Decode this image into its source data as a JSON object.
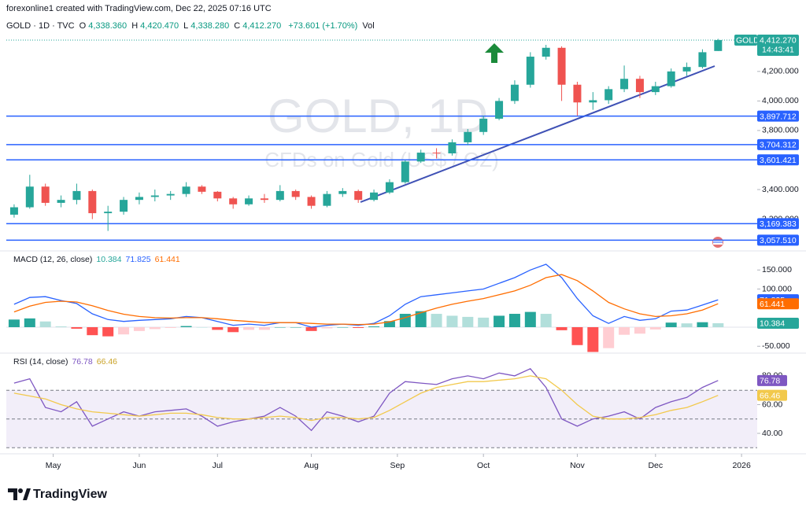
{
  "header": {
    "attribution": "forexonline1 created with TradingView.com, Dec 22, 2025 07:16 UTC",
    "symbol": "GOLD · 1D · TVC",
    "legend": [
      {
        "label": "O",
        "value": "4,338.360"
      },
      {
        "label": "H",
        "value": "4,420.470"
      },
      {
        "label": "L",
        "value": "4,338.280"
      },
      {
        "label": "C",
        "value": "4,412.270"
      }
    ],
    "change": "+73.601 (+1.70%)",
    "volume": "Vol"
  },
  "watermark": {
    "title": "GOLD, 1D",
    "subtitle": "CFDs on Gold (US$ / OZ)"
  },
  "chart_data": [
    {
      "type": "candlestick",
      "up_color": "#26a69a",
      "down_color": "#ef5350",
      "open": [
        3230,
        3280,
        3420,
        3310,
        3330,
        3390,
        3240,
        3250,
        3330,
        3350,
        3360,
        3370,
        3420,
        3385,
        3340,
        3300,
        3340,
        3330,
        3390,
        3350,
        3290,
        3370,
        3390,
        3330,
        3380,
        3450,
        3590,
        3650,
        3645,
        3720,
        3790,
        3880,
        4000,
        4110,
        4300,
        4360,
        4110,
        3990,
        4005,
        4080,
        4150,
        4060,
        4100,
        4200,
        4230,
        4338.36
      ],
      "high": [
        3300,
        3500,
        3440,
        3360,
        3440,
        3400,
        3290,
        3350,
        3380,
        3400,
        3390,
        3450,
        3430,
        3390,
        3350,
        3360,
        3370,
        3430,
        3400,
        3360,
        3390,
        3410,
        3400,
        3400,
        3470,
        3600,
        3670,
        3680,
        3740,
        3810,
        3900,
        4020,
        4140,
        4330,
        4380,
        4370,
        4130,
        4060,
        4100,
        4240,
        4170,
        4130,
        4220,
        4260,
        4350,
        4420.47
      ],
      "low": [
        3210,
        3270,
        3290,
        3280,
        3300,
        3200,
        3120,
        3230,
        3300,
        3320,
        3330,
        3350,
        3370,
        3320,
        3270,
        3290,
        3310,
        3320,
        3330,
        3270,
        3280,
        3350,
        3310,
        3320,
        3370,
        3440,
        3580,
        3610,
        3630,
        3700,
        3770,
        3870,
        3980,
        4090,
        4280,
        4000,
        3900,
        3940,
        3980,
        4060,
        4020,
        4040,
        4090,
        4170,
        4220,
        4338.28
      ],
      "close": [
        3280,
        3420,
        3310,
        3330,
        3390,
        3240,
        3250,
        3330,
        3350,
        3360,
        3370,
        3420,
        3385,
        3340,
        3300,
        3340,
        3330,
        3390,
        3350,
        3290,
        3370,
        3390,
        3330,
        3380,
        3450,
        3590,
        3650,
        3645,
        3720,
        3790,
        3880,
        4000,
        4110,
        4300,
        4360,
        4110,
        3990,
        4005,
        4080,
        4150,
        4060,
        4100,
        4200,
        4230,
        4330,
        4412.27
      ],
      "xlim": [
        -0.5,
        47.5
      ],
      "xticks": [
        {
          "value": 2.5,
          "label": "May"
        },
        {
          "value": 8,
          "label": "Jun"
        },
        {
          "value": 13,
          "label": "Jul"
        },
        {
          "value": 19,
          "label": "Aug"
        },
        {
          "value": 24.5,
          "label": "Sep"
        },
        {
          "value": 30,
          "label": "Oct"
        },
        {
          "value": 36,
          "label": "Nov"
        },
        {
          "value": 41,
          "label": "Dec"
        },
        {
          "value": 46.5,
          "label": "2026"
        }
      ],
      "ylim": [
        2990,
        4460
      ],
      "yticks": [
        {
          "value": 4200,
          "label": "4,200.000"
        },
        {
          "value": 4000,
          "label": "4,000.000"
        },
        {
          "value": 3800,
          "label": "3,800.000"
        },
        {
          "value": 3400,
          "label": "3,400.000"
        },
        {
          "value": 3200,
          "label": "3,200.000"
        }
      ],
      "level_color": "#2962ff",
      "levels": [
        {
          "value": 3897.712,
          "label": "3,897.712"
        },
        {
          "value": 3704.312,
          "label": "3,704.312"
        },
        {
          "value": 3601.421,
          "label": "3,601.421"
        },
        {
          "value": 3169.383,
          "label": "3,169.383"
        },
        {
          "value": 3057.51,
          "label": "3,057.510"
        }
      ],
      "last_price": {
        "value": 4412.27,
        "label": "4,412.270",
        "symbol": "GOLD",
        "countdown": "14:43:41",
        "color": "#26a69a"
      }
    },
    {
      "type": "macd",
      "title": "MACD (12, 26, close)",
      "ylim": [
        -66,
        198
      ],
      "yticks": [
        {
          "value": 150,
          "label": "150.000"
        },
        {
          "value": 100,
          "label": "100.000"
        },
        {
          "value": -50,
          "label": "-50.000"
        }
      ],
      "histogram": {
        "colors": [
          "#26a69a",
          "#b2dfdb",
          "#ffcdd2",
          "#ff5252"
        ],
        "values": [
          20,
          23,
          15,
          2,
          -4,
          -21,
          -24,
          -19,
          -10,
          -5,
          -2,
          3,
          0,
          -7,
          -13,
          -7,
          -7,
          0,
          0,
          -10,
          -3,
          0,
          -2,
          2,
          16,
          35,
          42,
          35,
          30,
          27,
          25,
          30,
          35,
          40,
          35,
          -8,
          -47,
          -65,
          -55,
          -20,
          -17,
          -6,
          12,
          10,
          13,
          10.384
        ],
        "last_label": "10.384",
        "label_color": "#26a69a"
      },
      "series": [
        {
          "color": "#2962ff",
          "values": [
            60,
            78,
            80,
            70,
            62,
            35,
            20,
            15,
            18,
            20,
            22,
            28,
            25,
            15,
            5,
            8,
            5,
            12,
            12,
            0,
            5,
            8,
            5,
            10,
            30,
            60,
            80,
            85,
            90,
            95,
            100,
            115,
            130,
            150,
            165,
            130,
            75,
            30,
            10,
            28,
            18,
            22,
            42,
            45,
            58,
            71.825
          ],
          "last_label": "71.825"
        },
        {
          "color": "#ff6d00",
          "values": [
            40,
            55,
            65,
            68,
            66,
            56,
            44,
            34,
            28,
            25,
            24,
            25,
            25,
            22,
            18,
            15,
            12,
            12,
            12,
            10,
            8,
            8,
            7,
            8,
            14,
            25,
            38,
            50,
            60,
            68,
            75,
            85,
            95,
            110,
            130,
            138,
            122,
            95,
            65,
            48,
            35,
            28,
            30,
            35,
            45,
            61.441
          ],
          "last_label": "61.441"
        }
      ]
    },
    {
      "type": "rsi",
      "title": "RSI (14, close)",
      "ylim": [
        28.5,
        95.3
      ],
      "yticks": [
        {
          "value": 80,
          "label": "80.00"
        },
        {
          "value": 60,
          "label": "60.00"
        },
        {
          "value": 40,
          "label": "40.00"
        }
      ],
      "bands": [
        70,
        50,
        30
      ],
      "series": [
        {
          "color": "#7e57c2",
          "values": [
            75,
            78,
            58,
            55,
            62,
            45,
            50,
            55,
            52,
            55,
            56,
            57,
            52,
            45,
            48,
            50,
            52,
            58,
            52,
            42,
            55,
            52,
            48,
            52,
            68,
            76,
            75,
            74,
            78,
            80,
            78,
            82,
            80,
            85,
            72,
            50,
            45,
            50,
            52,
            55,
            50,
            58,
            62,
            65,
            72,
            76.78
          ],
          "last_label": "76.78"
        },
        {
          "color": "#f2c94c",
          "values": [
            68,
            66,
            64,
            60,
            57,
            55,
            54,
            53,
            52,
            53,
            54,
            54,
            53,
            51,
            50,
            50,
            51,
            52,
            51,
            49,
            51,
            51,
            50,
            51,
            56,
            62,
            68,
            72,
            74,
            76,
            76,
            77,
            78,
            80,
            78,
            70,
            60,
            52,
            50,
            50,
            51,
            53,
            56,
            58,
            62,
            66.46
          ],
          "last_label": "66.46"
        }
      ]
    }
  ],
  "footer": {
    "brand": "TradingView"
  }
}
